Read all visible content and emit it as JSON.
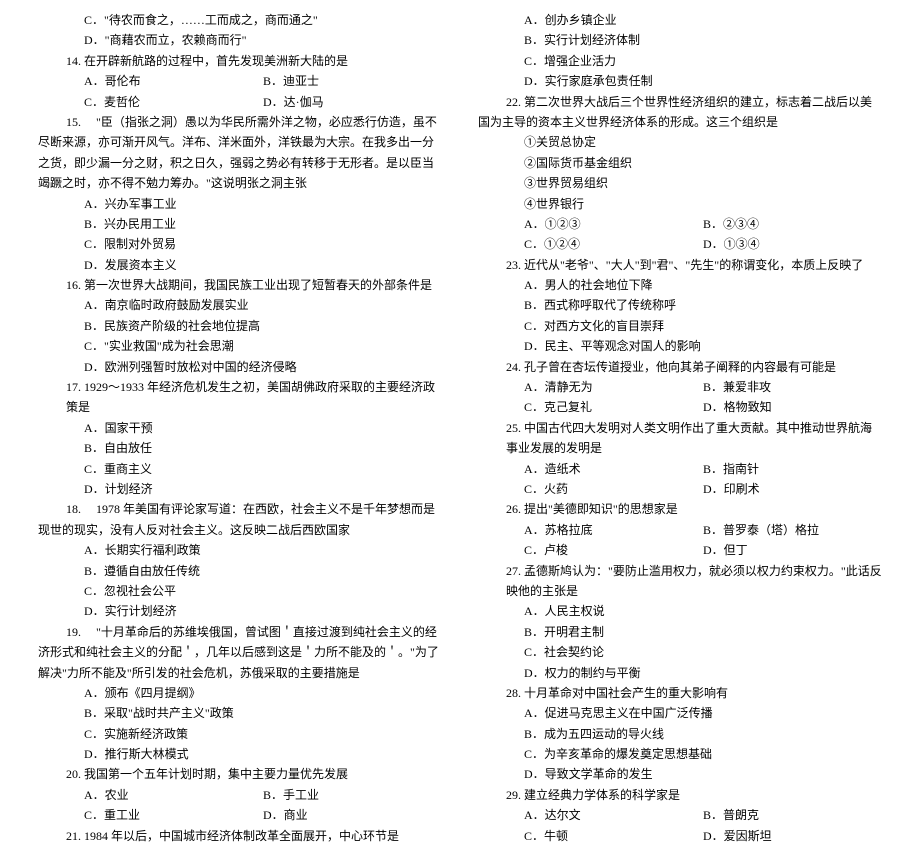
{
  "left": {
    "q13c": "C．\"待农而食之，……工而成之，商而通之\"",
    "q13d": "D．\"商藉农而立，农赖商而行\"",
    "q14": "14. 在开辟新航路的过程中，首先发现美洲新大陆的是",
    "q14a": "A．哥伦布",
    "q14b": "B．迪亚士",
    "q14c": "C．麦哲伦",
    "q14d": "D．达·伽马",
    "q15": "15. 　\"臣（指张之洞）愚以为华民所需外洋之物，必应悉行仿造，虽不尽断来源，亦可渐开风气。洋布、洋米面外，洋铁最为大宗。在我多出一分之货，即少漏一分之财，积之日久，强弱之势必有转移于无形者。是以臣当竭蹶之时，亦不得不勉力筹办。\"这说明张之洞主张",
    "q15a": "A．兴办军事工业",
    "q15b": "B．兴办民用工业",
    "q15c": "C．限制对外贸易",
    "q15d": "D．发展资本主义",
    "q16": "16. 第一次世界大战期间，我国民族工业出现了短暂春天的外部条件是",
    "q16a": "A．南京临时政府鼓励发展实业",
    "q16b": "B．民族资产阶级的社会地位提高",
    "q16c": "C．\"实业救国\"成为社会思潮",
    "q16d": "D．欧洲列强暂时放松对中国的经济侵略",
    "q17": "17. 1929～1933 年经济危机发生之初，美国胡佛政府采取的主要经济政策是",
    "q17a": "A．国家干预",
    "q17b": "B．自由放任",
    "q17c": "C．重商主义",
    "q17d": "D．计划经济",
    "q18": "18. 　1978 年美国有评论家写道：在西欧，社会主义不是千年梦想而是现世的现实，没有人反对社会主义。这反映二战后西欧国家",
    "q18a": "A．长期实行福利政策",
    "q18b": "B．遵循自由放任传统",
    "q18c": "C．忽视社会公平",
    "q18d": "D．实行计划经济",
    "q19": "19. 　\"十月革命后的苏维埃俄国，曾试图＇直接过渡到纯社会主义的经济形式和纯社会主义的分配＇，几年以后感到这是＇力所不能及的＇。\"为了解决\"力所不能及\"所引发的社会危机，苏俄采取的主要措施是",
    "q19a": "A．颁布《四月提纲》",
    "q19b": "B．采取\"战时共产主义\"政策",
    "q19c": "C．实施新经济政策",
    "q19d": "D．推行斯大林模式",
    "q20": "20. 我国第一个五年计划时期，集中主要力量优先发展",
    "q20a": "A．农业",
    "q20b": "B．手工业",
    "q20c": "C．重工业",
    "q20d": "D．商业",
    "q21": "21. 1984 年以后，中国城市经济体制改革全面展开，中心环节是"
  },
  "right": {
    "q21a": "A．创办乡镇企业",
    "q21b": "B．实行计划经济体制",
    "q21c": "C．增强企业活力",
    "q21d": "D．实行家庭承包责任制",
    "q22": "22. 第二次世界大战后三个世界性经济组织的建立，标志着二战后以美国为主导的资本主义世界经济体系的形成。这三个组织是",
    "q22_1": "①关贸总协定",
    "q22_2": "②国际货币基金组织",
    "q22_3": "③世界贸易组织",
    "q22_4": "④世界银行",
    "q22a": "A．①②③",
    "q22b": "B．②③④",
    "q22c": "C．①②④",
    "q22d": "D．①③④",
    "q23": "23. 近代从\"老爷\"、\"大人\"到\"君\"、\"先生\"的称谓变化，本质上反映了",
    "q23a": "A．男人的社会地位下降",
    "q23b": "B．西式称呼取代了传统称呼",
    "q23c": "C．对西方文化的盲目崇拜",
    "q23d": "D．民主、平等观念对国人的影响",
    "q24": "24. 孔子曾在杏坛传道授业，他向其弟子阐释的内容最有可能是",
    "q24a": "A．清静无为",
    "q24b": "B．兼爱非攻",
    "q24c": "C．克己复礼",
    "q24d": "D．格物致知",
    "q25": "25. 中国古代四大发明对人类文明作出了重大贡献。其中推动世界航海事业发展的发明是",
    "q25a": "A．造纸术",
    "q25b": "B．指南针",
    "q25c": "C．火药",
    "q25d": "D．印刷术",
    "q26": "26. 提出\"美德即知识\"的思想家是",
    "q26a": "A．苏格拉底",
    "q26b": "B．普罗泰（塔）格拉",
    "q26c": "C．卢梭",
    "q26d": "D．但丁",
    "q27": "27. 孟德斯鸠认为：\"要防止滥用权力，就必须以权力约束权力。\"此话反映他的主张是",
    "q27a": "A．人民主权说",
    "q27b": "B．开明君主制",
    "q27c": "C．社会契约论",
    "q27d": "D．权力的制约与平衡",
    "q28": "28. 十月革命对中国社会产生的重大影响有",
    "q28a": "A．促进马克思主义在中国广泛传播",
    "q28b": "B．成为五四运动的导火线",
    "q28c": "C．为辛亥革命的爆发奠定思想基础",
    "q28d": "D．导致文学革命的发生",
    "q29": "29. 建立经典力学体系的科学家是",
    "q29a": "A．达尔文",
    "q29b": "B．普朗克",
    "q29c": "C．牛顿",
    "q29d": "D．爱因斯坦"
  }
}
